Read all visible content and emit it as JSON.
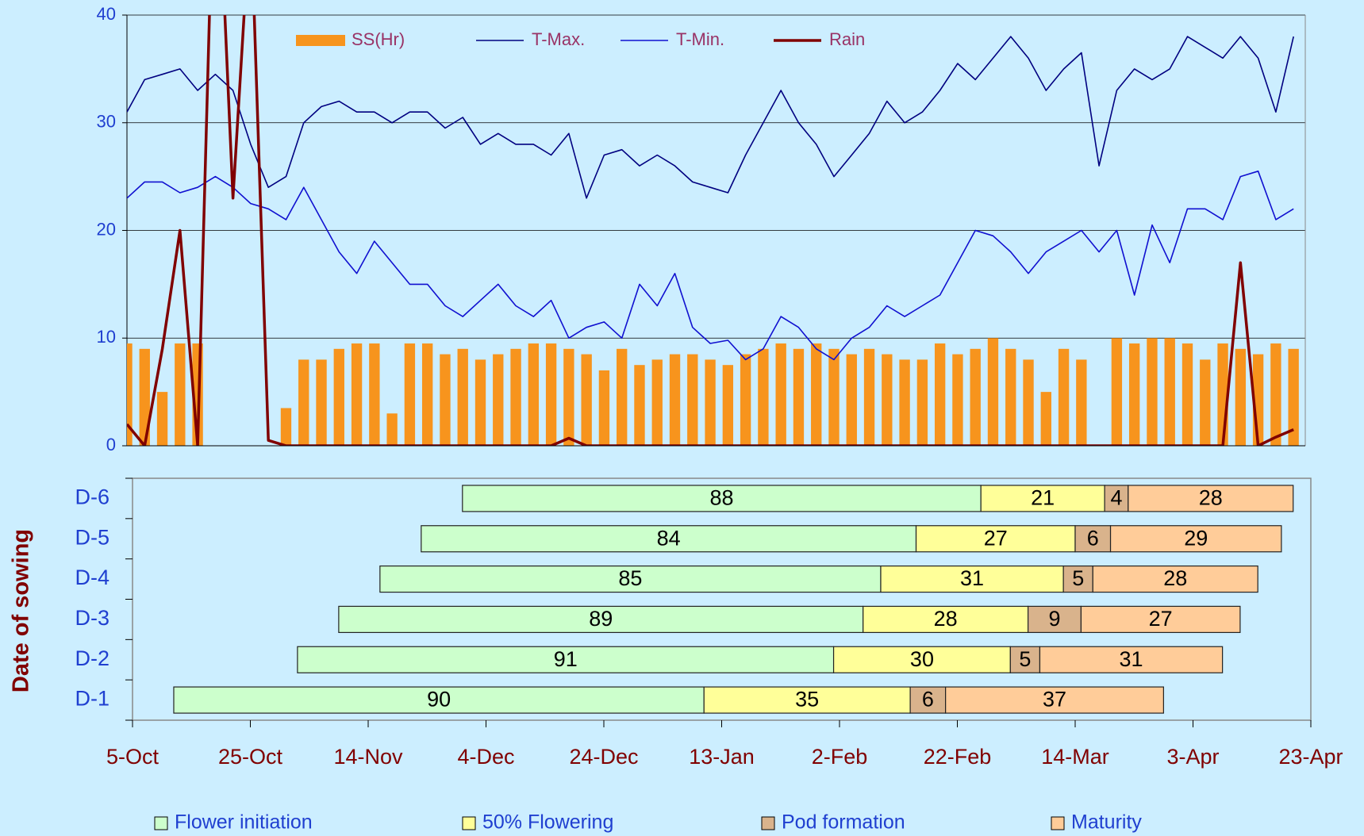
{
  "chart_data": [
    {
      "type": "combo",
      "legend": "top",
      "grid": true,
      "xlim": [
        0,
        200
      ],
      "ylim": [
        0,
        40
      ],
      "yticks": [
        0,
        10,
        20,
        30,
        40
      ],
      "x": [
        0,
        3,
        6,
        9,
        12,
        15,
        18,
        21,
        24,
        27,
        30,
        33,
        36,
        39,
        42,
        45,
        48,
        51,
        54,
        57,
        60,
        63,
        66,
        69,
        72,
        75,
        78,
        81,
        84,
        87,
        90,
        93,
        96,
        99,
        102,
        105,
        108,
        111,
        114,
        117,
        120,
        123,
        126,
        129,
        132,
        135,
        138,
        141,
        144,
        147,
        150,
        153,
        156,
        159,
        162,
        165,
        168,
        171,
        174,
        177,
        180,
        183,
        186,
        189,
        192,
        195,
        198
      ],
      "series": [
        {
          "name": "SS(Hr)",
          "type": "bar",
          "color": "#f7941d",
          "values": [
            9.5,
            9,
            5,
            9.5,
            9.5,
            0,
            0,
            0,
            0,
            3.5,
            8,
            8,
            9,
            9.5,
            9.5,
            3,
            9.5,
            9.5,
            8.5,
            9,
            8,
            8.5,
            9,
            9.5,
            9.5,
            9,
            8.5,
            7,
            9,
            7.5,
            8,
            8.5,
            8.5,
            8,
            7.5,
            8.5,
            9,
            9.5,
            9,
            9.5,
            9,
            8.5,
            9,
            8.5,
            8,
            8,
            9.5,
            8.5,
            9,
            10,
            9,
            8,
            5,
            9,
            8,
            0,
            10,
            9.5,
            10,
            10,
            9.5,
            8,
            9.5,
            9,
            8.5,
            9.5,
            9
          ]
        },
        {
          "name": "T-Max.",
          "type": "line",
          "color": "#000080",
          "values": [
            31,
            34,
            34.5,
            35,
            33,
            34.5,
            33,
            28,
            24,
            25,
            30,
            31.5,
            32,
            31,
            31,
            30,
            31,
            31,
            29.5,
            30.5,
            28,
            29,
            28,
            28,
            27,
            29,
            23,
            27,
            27.5,
            26,
            27,
            26,
            24.5,
            24,
            23.5,
            27,
            30,
            33,
            30,
            28,
            25,
            27,
            29,
            32,
            30,
            31,
            33,
            35.5,
            34,
            36,
            38,
            36,
            33,
            35,
            36.5,
            26,
            33,
            35,
            34,
            35,
            38,
            37,
            36,
            38,
            36,
            31,
            38
          ]
        },
        {
          "name": "T-Min.",
          "type": "line",
          "color": "#1010d0",
          "values": [
            23,
            24.5,
            24.5,
            23.5,
            24,
            25,
            24,
            22.5,
            22,
            21,
            24,
            21,
            18,
            16,
            19,
            17,
            15,
            15,
            13,
            12,
            13.5,
            15,
            13,
            12,
            13.5,
            10,
            11,
            11.5,
            10,
            15,
            13,
            16,
            11,
            9.5,
            9.8,
            8,
            9,
            12,
            11,
            9,
            8,
            10,
            11,
            13,
            12,
            13,
            14,
            17,
            20,
            19.5,
            18,
            16,
            18,
            19,
            20,
            18,
            20,
            14,
            20.5,
            17,
            22,
            22,
            21,
            25,
            25.5,
            21,
            22
          ]
        },
        {
          "name": "Rain",
          "type": "line",
          "color": "#800000",
          "width": 3.5,
          "values": [
            2,
            0,
            9,
            20,
            0,
            60,
            23,
            50,
            0.5,
            0,
            0,
            0,
            0,
            0,
            0,
            0,
            0,
            0,
            0,
            0,
            0,
            0,
            0,
            0,
            0,
            0.7,
            0,
            0,
            0,
            0,
            0,
            0,
            0,
            0,
            0,
            0,
            0,
            0,
            0,
            0,
            0,
            0,
            0,
            0,
            0,
            0,
            0,
            0,
            0,
            0,
            0,
            0,
            0,
            0,
            0,
            0,
            0,
            0,
            0,
            0,
            0,
            0,
            0,
            17,
            0,
            0.8,
            1.5
          ]
        }
      ]
    },
    {
      "type": "gantt",
      "legend": "bottom",
      "ylabel": "Date of sowing",
      "categories": [
        "D-1",
        "D-2",
        "D-3",
        "D-4",
        "D-5",
        "D-6"
      ],
      "start": [
        7,
        28,
        35,
        42,
        49,
        56
      ],
      "xlim": [
        0,
        200
      ],
      "xticks": [
        {
          "value": 0,
          "label": "5-Oct"
        },
        {
          "value": 20,
          "label": "25-Oct"
        },
        {
          "value": 40,
          "label": "14-Nov"
        },
        {
          "value": 60,
          "label": "4-Dec"
        },
        {
          "value": 80,
          "label": "24-Dec"
        },
        {
          "value": 100,
          "label": "13-Jan"
        },
        {
          "value": 120,
          "label": "2-Feb"
        },
        {
          "value": 140,
          "label": "22-Feb"
        },
        {
          "value": 160,
          "label": "14-Mar"
        },
        {
          "value": 180,
          "label": "3-Apr"
        },
        {
          "value": 200,
          "label": "23-Apr"
        }
      ],
      "series": [
        {
          "name": "Flower initiation",
          "color": "#ccffcc",
          "values": [
            90,
            91,
            89,
            85,
            84,
            88
          ]
        },
        {
          "name": "50% Flowering",
          "color": "#ffff99",
          "values": [
            35,
            30,
            28,
            31,
            27,
            21
          ]
        },
        {
          "name": "Pod formation",
          "color": "#d9b38c",
          "values": [
            6,
            5,
            9,
            5,
            6,
            4
          ]
        },
        {
          "name": "Maturity",
          "color": "#ffcc99",
          "values": [
            37,
            31,
            27,
            28,
            29,
            28
          ]
        }
      ]
    }
  ]
}
